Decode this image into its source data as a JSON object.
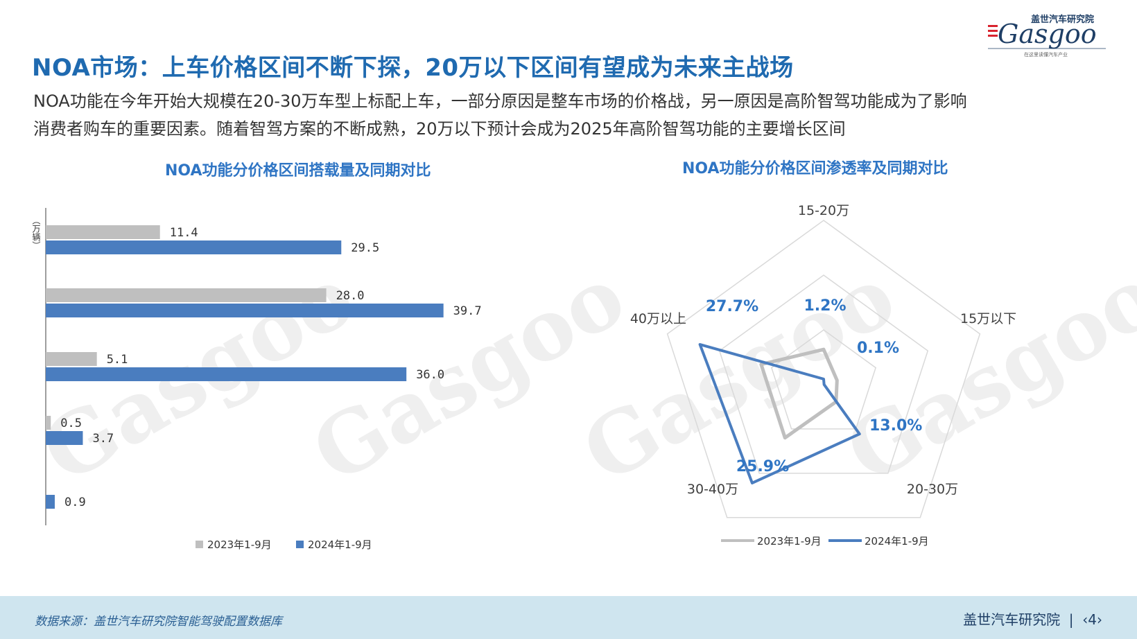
{
  "header": {
    "title": "NOA市场：上车价格区间不断下探，20万以下区间有望成为未来主战场",
    "subtitle_line1": "NOA功能在今年开始大规模在20-30万车型上标配上车，一部分原因是整车市场的价格战，另一原因是高阶智驾功能成为了影响",
    "subtitle_line2": "消费者购车的重要因素。随着智驾方案的不断成熟，20万以下预计会成为2025年高阶智驾功能的主要增长区间"
  },
  "logo": {
    "top_text": "盖世汽车研究院",
    "brand": "Gasgoo",
    "tagline": "在这里读懂汽车产业"
  },
  "watermark": {
    "brand": "Gasgoo",
    "top_text": "盖世汽车研究院",
    "tagline": "在这里读懂汽车产业"
  },
  "colors": {
    "title": "#1f6ab0",
    "series_2023": "#bfbfbf",
    "series_2024": "#4a7dbf",
    "footer_bg": "#cfe5ef"
  },
  "chart_data": [
    {
      "type": "bar",
      "orientation": "horizontal",
      "title": "NOA功能分价格区间搭载量及同期对比",
      "axis_label": "（万辆）",
      "categories": [
        "",
        "",
        "",
        "",
        ""
      ],
      "series": [
        {
          "name": "2023年1-9月",
          "values": [
            11.4,
            28.0,
            5.1,
            0.5,
            null
          ],
          "labels": [
            "11.4",
            "28.0",
            "5.1",
            "0.5",
            ""
          ]
        },
        {
          "name": "2024年1-9月",
          "values": [
            29.5,
            39.7,
            36.0,
            3.7,
            0.9
          ],
          "labels": [
            "29.5",
            "39.7",
            "36.0",
            "3.7",
            "0.9"
          ]
        }
      ],
      "xlim": [
        0,
        50
      ],
      "legend": "bottom"
    },
    {
      "type": "radar",
      "title": "NOA功能分价格区间渗透率及同期对比",
      "axes": [
        "15-20万",
        "15万以下",
        "20-30万",
        "30-40万",
        "40万以上"
      ],
      "max": 0.35,
      "rings": 3,
      "series": [
        {
          "name": "2023年1-9月",
          "values": [
            0.075,
            0.03,
            0.045,
            0.14,
            0.14
          ]
        },
        {
          "name": "2024年1-9月",
          "values": [
            0.012,
            0.001,
            0.13,
            0.259,
            0.277
          ],
          "labels": [
            "1.2%",
            "0.1%",
            "13.0%",
            "25.9%",
            "27.7%"
          ]
        }
      ],
      "legend": "bottom"
    }
  ],
  "footer": {
    "source": "数据来源：盖世汽车研究院智能驾驶配置数据库",
    "org": "盖世汽车研究院",
    "page": "‹4›"
  }
}
